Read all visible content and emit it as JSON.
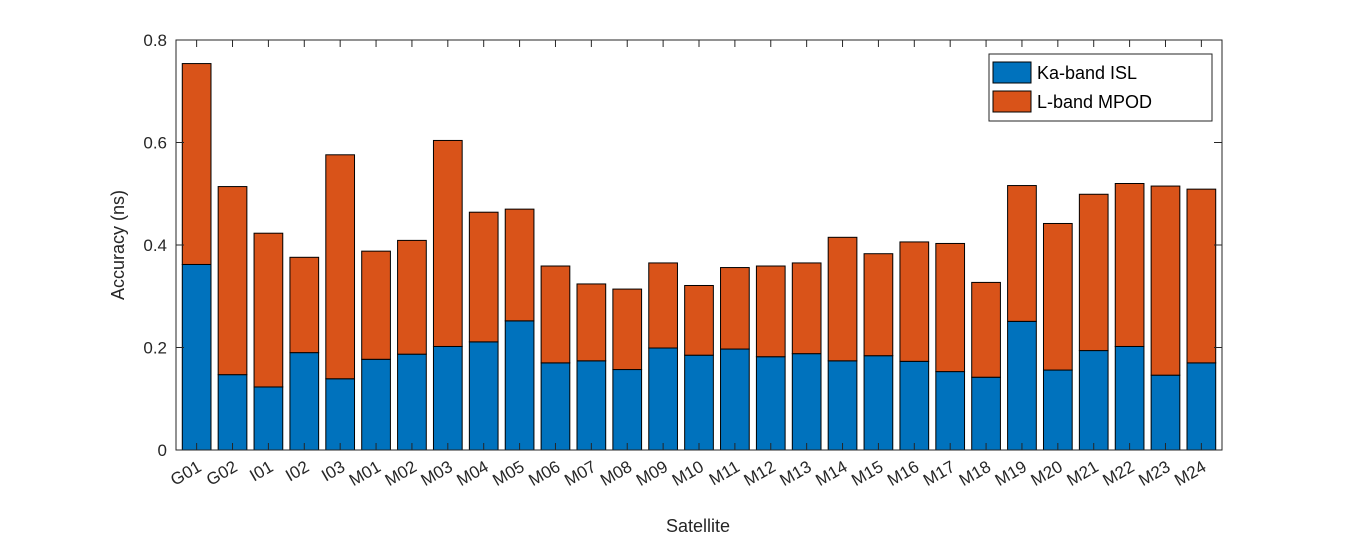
{
  "chart_data": {
    "type": "bar",
    "stacked": true,
    "title": "",
    "xlabel": "Satellite",
    "ylabel": "Accuracy (ns)",
    "ylim": [
      0,
      0.8
    ],
    "yticks": [
      "0",
      "0.2",
      "0.4",
      "0.6",
      "0.8"
    ],
    "grid": false,
    "legend_position": "top-right",
    "categories": [
      "G01",
      "G02",
      "I01",
      "I02",
      "I03",
      "M01",
      "M02",
      "M03",
      "M04",
      "M05",
      "M06",
      "M07",
      "M08",
      "M09",
      "M10",
      "M11",
      "M12",
      "M13",
      "M14",
      "M15",
      "M16",
      "M17",
      "M18",
      "M19",
      "M20",
      "M21",
      "M22",
      "M23",
      "M24"
    ],
    "series": [
      {
        "name": "Ka-band ISL",
        "color": "#0072BD",
        "values": [
          0.362,
          0.147,
          0.123,
          0.19,
          0.139,
          0.177,
          0.187,
          0.202,
          0.211,
          0.252,
          0.17,
          0.174,
          0.157,
          0.199,
          0.185,
          0.197,
          0.182,
          0.188,
          0.174,
          0.184,
          0.173,
          0.153,
          0.142,
          0.251,
          0.156,
          0.194,
          0.202,
          0.146,
          0.17
        ]
      },
      {
        "name": "L-band MPOD",
        "color": "#D95319",
        "values": [
          0.392,
          0.367,
          0.3,
          0.186,
          0.437,
          0.211,
          0.222,
          0.402,
          0.253,
          0.218,
          0.189,
          0.15,
          0.157,
          0.166,
          0.136,
          0.159,
          0.177,
          0.177,
          0.241,
          0.199,
          0.233,
          0.25,
          0.185,
          0.265,
          0.286,
          0.305,
          0.318,
          0.369,
          0.339
        ]
      }
    ]
  }
}
